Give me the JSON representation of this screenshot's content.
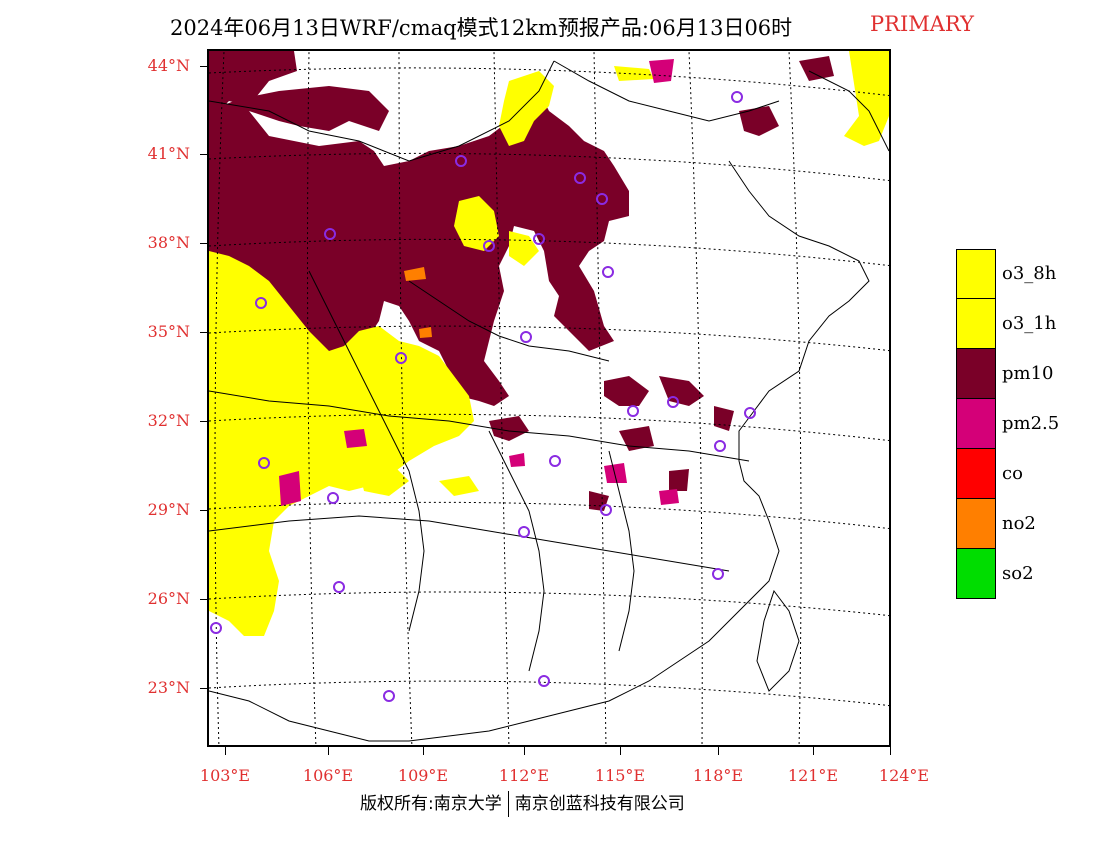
{
  "title": {
    "main": "2024年06月13日WRF/cmaq模式12km预报产品:06月13日06时",
    "tag": "PRIMARY"
  },
  "axes": {
    "lat_labels": [
      "44°N",
      "41°N",
      "38°N",
      "35°N",
      "32°N",
      "29°N",
      "26°N",
      "23°N"
    ],
    "lon_labels": [
      "103°E",
      "106°E",
      "109°E",
      "112°E",
      "115°E",
      "118°E",
      "121°E",
      "124°E"
    ]
  },
  "legend": {
    "items": [
      {
        "label": "o3_8h",
        "color": "#ffff00"
      },
      {
        "label": "o3_1h",
        "color": "#ffff00"
      },
      {
        "label": "pm10",
        "color": "#7a0028"
      },
      {
        "label": "pm2.5",
        "color": "#d40078"
      },
      {
        "label": "co",
        "color": "#ff0000"
      },
      {
        "label": "no2",
        "color": "#ff7f00"
      },
      {
        "label": "so2",
        "color": "#00dd00"
      }
    ]
  },
  "colors": {
    "o3": "#ffff00",
    "pm10": "#7a0028",
    "pm25": "#d40078",
    "no2": "#ff7f00",
    "station": "#8a2be2",
    "label_red": "#e03030"
  },
  "footer": {
    "left": "版权所有:南京大学",
    "right": "南京创蓝科技有限公司"
  }
}
